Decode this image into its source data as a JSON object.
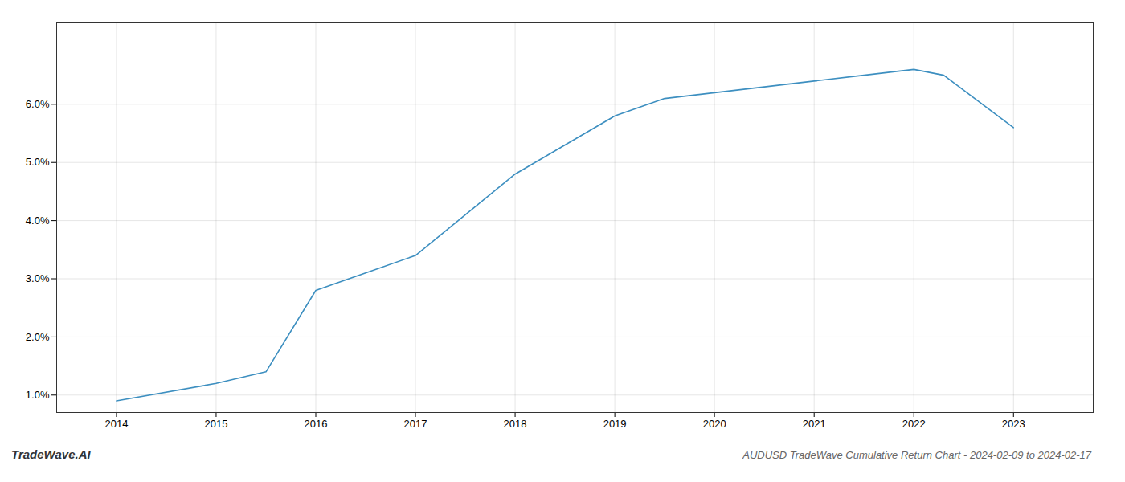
{
  "chart_data": {
    "type": "line",
    "title": "AUDUSD TradeWave Cumulative Return Chart - 2024-02-09 to 2024-02-17",
    "annotations": [
      "TradeWave.AI"
    ],
    "x": [
      2014,
      2015,
      2015.5,
      2016,
      2016.5,
      2017,
      2017.5,
      2018,
      2018.5,
      2019,
      2019.5,
      2020,
      2020.5,
      2021,
      2021.5,
      2022,
      2022.3,
      2023
    ],
    "values": [
      0.009,
      0.012,
      0.014,
      0.028,
      0.031,
      0.034,
      0.041,
      0.048,
      0.053,
      0.058,
      0.061,
      0.062,
      0.063,
      0.064,
      0.065,
      0.066,
      0.065,
      0.056
    ],
    "color": "#3d8fc0",
    "xlim": [
      2013.4,
      2023.8
    ],
    "xticks": [
      2014,
      2015,
      2016,
      2017,
      2018,
      2019,
      2020,
      2021,
      2022,
      2023
    ],
    "ylim": [
      0.007,
      0.074
    ],
    "yticks": [
      {
        "value": 0.01,
        "label": "1.0%"
      },
      {
        "value": 0.02,
        "label": "2.0%"
      },
      {
        "value": 0.03,
        "label": "3.0%"
      },
      {
        "value": 0.04,
        "label": "4.0%"
      },
      {
        "value": 0.05,
        "label": "5.0%"
      },
      {
        "value": 0.06,
        "label": "6.0%"
      }
    ],
    "grid": true
  }
}
